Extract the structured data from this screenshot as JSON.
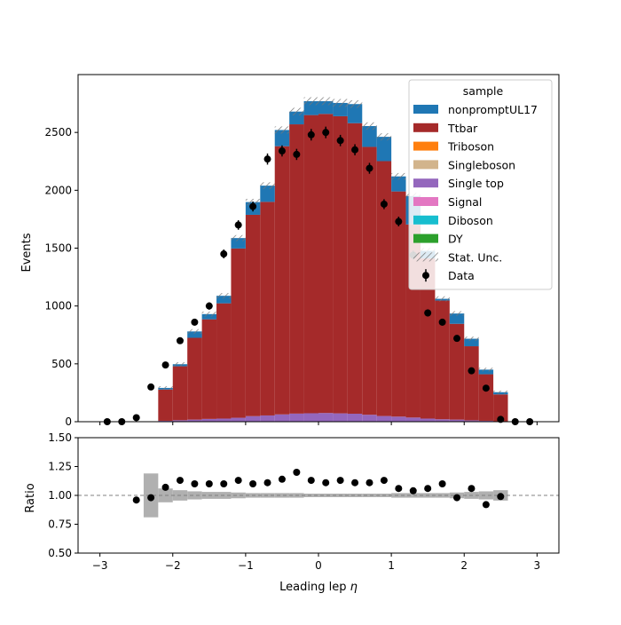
{
  "chart_data": {
    "type": "bar",
    "xlabel": "Leading lep",
    "xlabel_symbol": "η",
    "top_ylabel": "Events",
    "bottom_ylabel": "Ratio",
    "xlim": [
      -3.3,
      3.3
    ],
    "top_ylim": [
      0,
      3000
    ],
    "bottom_ylim": [
      0.5,
      1.5
    ],
    "x_ticks": [
      "−3",
      "−2",
      "−1",
      "0",
      "1",
      "2",
      "3"
    ],
    "x_tick_values": [
      -3,
      -2,
      -1,
      0,
      1,
      2,
      3
    ],
    "top_y_ticks": [
      "0",
      "500",
      "1000",
      "1500",
      "2000",
      "2500"
    ],
    "top_y_tick_values": [
      0,
      500,
      1000,
      1500,
      2000,
      2500
    ],
    "bottom_y_ticks": [
      "0.50",
      "0.75",
      "1.00",
      "1.25",
      "1.50"
    ],
    "bottom_y_tick_values": [
      0.5,
      0.75,
      1.0,
      1.25,
      1.5
    ],
    "reference_line": 1.0,
    "bin_edges": [
      -3.0,
      -2.8,
      -2.6,
      -2.4,
      -2.2,
      -2.0,
      -1.8,
      -1.6,
      -1.4,
      -1.2,
      -1.0,
      -0.8,
      -0.6,
      -0.4,
      -0.2,
      0.0,
      0.2,
      0.4,
      0.6,
      0.8,
      1.0,
      1.2,
      1.4,
      1.6,
      1.8,
      2.0,
      2.2,
      2.4,
      2.6,
      2.8,
      3.0
    ],
    "legend": {
      "title": "sample",
      "placement": "top-right",
      "entries": [
        {
          "label": "nonpromptUL17",
          "color": "#1f77b4",
          "kind": "patch"
        },
        {
          "label": "Ttbar",
          "color": "#a52a2a",
          "kind": "patch"
        },
        {
          "label": "Triboson",
          "color": "#ff7f0e",
          "kind": "patch"
        },
        {
          "label": "Singleboson",
          "color": "#d2b48c",
          "kind": "patch"
        },
        {
          "label": "Single top",
          "color": "#9467bd",
          "kind": "patch"
        },
        {
          "label": "Signal",
          "color": "#e377c2",
          "kind": "patch"
        },
        {
          "label": "Diboson",
          "color": "#17becf",
          "kind": "patch"
        },
        {
          "label": "DY",
          "color": "#2ca02c",
          "kind": "patch"
        },
        {
          "label": "Stat. Unc.",
          "color": "#777777",
          "kind": "hatch"
        },
        {
          "label": "Data",
          "color": "#000000",
          "kind": "marker"
        }
      ]
    },
    "series": [
      {
        "name": "Single top",
        "color": "#9467bd",
        "values": [
          0,
          0,
          0,
          2,
          8,
          13,
          18,
          24,
          27,
          34,
          48,
          54,
          63,
          70,
          73,
          75,
          72,
          69,
          60,
          49,
          44,
          36,
          27,
          21,
          18,
          12,
          8,
          4,
          0,
          0
        ]
      },
      {
        "name": "Ttbar",
        "color": "#a52a2a",
        "values": [
          0,
          0,
          0,
          0,
          270,
          466,
          707,
          861,
          996,
          1463,
          1740,
          1846,
          2318,
          2500,
          2577,
          2585,
          2568,
          2511,
          2315,
          2203,
          1946,
          1669,
          1384,
          1026,
          828,
          640,
          402,
          232,
          0,
          0
        ]
      },
      {
        "name": "nonpromptUL17",
        "color": "#1f77b4",
        "values": [
          0,
          0,
          0,
          0,
          14,
          18,
          55,
          45,
          65,
          90,
          110,
          140,
          140,
          110,
          120,
          110,
          115,
          165,
          180,
          210,
          130,
          245,
          65,
          15,
          89,
          65,
          40,
          19,
          0,
          0
        ]
      }
    ],
    "stat_unc_half": [
      0,
      0,
      0,
      0,
      15,
      17,
      20,
      22,
      24,
      26,
      28,
      29,
      31,
      33,
      34,
      34,
      34,
      33,
      32,
      31,
      29,
      27,
      25,
      22,
      20,
      18,
      16,
      14,
      0,
      0
    ],
    "data": {
      "x": [
        -2.9,
        -2.7,
        -2.5,
        -2.3,
        -2.1,
        -1.9,
        -1.7,
        -1.5,
        -1.3,
        -1.1,
        -0.9,
        -0.7,
        -0.5,
        -0.3,
        -0.1,
        0.1,
        0.3,
        0.5,
        0.7,
        0.9,
        1.1,
        1.3,
        1.5,
        1.7,
        1.9,
        2.1,
        2.3,
        2.5,
        2.7,
        2.9
      ],
      "y": [
        0,
        0,
        35,
        300,
        490,
        700,
        860,
        1000,
        1450,
        1700,
        1860,
        2270,
        2340,
        2310,
        2480,
        2500,
        2430,
        2350,
        2190,
        1880,
        1730,
        1440,
        940,
        860,
        720,
        440,
        290,
        20,
        0,
        0
      ],
      "yerr": [
        0,
        0,
        6,
        17,
        22,
        26,
        29,
        32,
        38,
        41,
        43,
        48,
        48,
        48,
        50,
        50,
        49,
        48,
        47,
        43,
        42,
        38,
        31,
        29,
        27,
        21,
        17,
        4,
        0,
        0
      ]
    },
    "ratio": {
      "x": [
        -2.5,
        -2.3,
        -2.1,
        -1.9,
        -1.7,
        -1.5,
        -1.3,
        -1.1,
        -0.9,
        -0.7,
        -0.5,
        -0.3,
        -0.1,
        0.1,
        0.3,
        0.5,
        0.7,
        0.9,
        1.1,
        1.3,
        1.5,
        1.7,
        1.9,
        2.1,
        2.3,
        2.5
      ],
      "y": [
        0.96,
        0.98,
        1.07,
        1.13,
        1.1,
        1.1,
        1.1,
        1.13,
        1.1,
        1.11,
        1.14,
        1.2,
        1.13,
        1.11,
        1.13,
        1.11,
        1.11,
        1.13,
        1.06,
        1.04,
        1.06,
        1.1,
        0.98,
        1.06,
        0.92,
        0.99
      ]
    },
    "ratio_unc_half": [
      0,
      0,
      0,
      0.19,
      0.06,
      0.045,
      0.035,
      0.03,
      0.03,
      0.025,
      0.02,
      0.02,
      0.02,
      0.02,
      0.015,
      0.015,
      0.015,
      0.015,
      0.015,
      0.015,
      0.02,
      0.02,
      0.02,
      0.02,
      0.025,
      0.03,
      0.035,
      0.045,
      0,
      0
    ]
  }
}
